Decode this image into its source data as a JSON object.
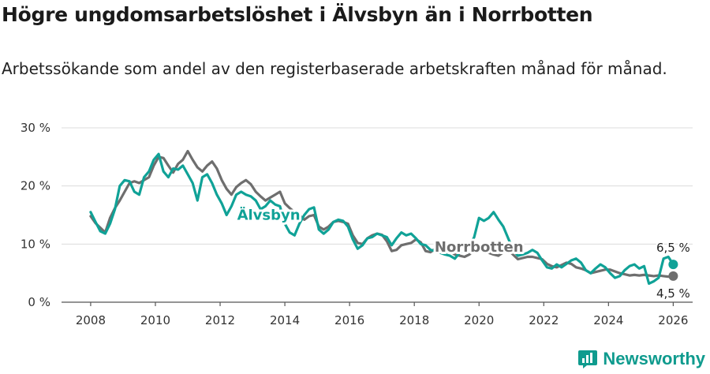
{
  "title": "Högre ungdomsarbetslöshet i Älvsbyn än i Norrbotten",
  "subtitle": "Arbetssökande som andel av den registerbaserade arbetskraften månad för månad.",
  "brand": "Newsworthy",
  "colors": {
    "alvsbyn": "#10a297",
    "norrbotten": "#6e6e6e",
    "grid": "#dcdcdc",
    "brand": "#0f9b8e"
  },
  "chart_data": {
    "type": "line",
    "ylim": [
      0,
      30
    ],
    "xlim": [
      2007.1,
      2026.6
    ],
    "yticks": [
      0,
      10,
      20,
      30
    ],
    "ytick_labels": [
      "0 %",
      "10 %",
      "20 %",
      "30 %"
    ],
    "xticks": [
      "2008",
      "2010",
      "2012",
      "2014",
      "2016",
      "2018",
      "2020",
      "2022",
      "2024",
      "2026"
    ],
    "series": [
      {
        "name": "Norrbotten",
        "label": "Norrbotten",
        "color": "#6e6e6e",
        "end_value": 4.5,
        "end_label": "4,5 %",
        "x": [
          2008.0,
          2008.15,
          2008.3,
          2008.45,
          2008.6,
          2008.75,
          2008.9,
          2009.05,
          2009.2,
          2009.35,
          2009.5,
          2009.65,
          2009.8,
          2009.95,
          2010.1,
          2010.25,
          2010.4,
          2010.55,
          2010.7,
          2010.85,
          2011.0,
          2011.15,
          2011.3,
          2011.45,
          2011.6,
          2011.75,
          2011.9,
          2012.05,
          2012.2,
          2012.35,
          2012.5,
          2012.65,
          2012.8,
          2012.95,
          2013.1,
          2013.25,
          2013.4,
          2013.55,
          2013.7,
          2013.85,
          2014.0,
          2014.15,
          2014.3,
          2014.45,
          2014.6,
          2014.75,
          2014.9,
          2015.05,
          2015.2,
          2015.35,
          2015.5,
          2015.65,
          2015.8,
          2015.95,
          2016.1,
          2016.25,
          2016.4,
          2016.55,
          2016.7,
          2016.85,
          2017.0,
          2017.15,
          2017.3,
          2017.45,
          2017.6,
          2017.75,
          2017.9,
          2018.05,
          2018.2,
          2018.35,
          2018.5,
          2018.65,
          2018.8,
          2018.95,
          2019.1,
          2019.25,
          2019.4,
          2019.55,
          2019.7,
          2019.85,
          2020.0,
          2020.15,
          2020.3,
          2020.45,
          2020.6,
          2020.75,
          2020.9,
          2021.05,
          2021.2,
          2021.35,
          2021.5,
          2021.65,
          2021.8,
          2021.95,
          2022.1,
          2022.25,
          2022.4,
          2022.55,
          2022.7,
          2022.85,
          2023.0,
          2023.15,
          2023.3,
          2023.45,
          2023.6,
          2023.75,
          2023.9,
          2024.05,
          2024.2,
          2024.35,
          2024.5,
          2024.65,
          2024.8,
          2024.95,
          2025.1,
          2025.25,
          2025.4,
          2025.55,
          2025.7,
          2025.85,
          2026.0
        ],
        "values": [
          14.8,
          13.6,
          12.8,
          12.0,
          14.5,
          16.2,
          17.5,
          19.0,
          20.5,
          20.8,
          20.5,
          21.0,
          21.5,
          23.5,
          25.0,
          24.8,
          23.5,
          22.3,
          23.8,
          24.5,
          26.0,
          24.5,
          23.2,
          22.5,
          23.5,
          24.2,
          23.0,
          21.0,
          19.5,
          18.5,
          19.8,
          20.5,
          21.0,
          20.3,
          19.0,
          18.2,
          17.5,
          18.0,
          18.5,
          19.0,
          17.0,
          16.2,
          15.5,
          15.0,
          14.2,
          14.8,
          15.0,
          13.0,
          12.5,
          13.0,
          13.8,
          14.0,
          13.8,
          13.5,
          11.5,
          10.2,
          10.0,
          11.0,
          11.5,
          11.8,
          11.6,
          10.5,
          8.8,
          9.0,
          9.8,
          10.0,
          10.2,
          10.8,
          10.3,
          8.8,
          8.6,
          9.2,
          8.8,
          8.5,
          8.8,
          8.2,
          8.0,
          7.8,
          8.2,
          9.0,
          9.5,
          9.0,
          8.5,
          8.2,
          8.0,
          8.6,
          9.0,
          8.2,
          7.4,
          7.6,
          7.8,
          7.8,
          7.6,
          7.4,
          6.6,
          6.2,
          6.0,
          6.4,
          6.8,
          6.6,
          6.0,
          5.8,
          5.5,
          5.0,
          5.2,
          5.4,
          5.6,
          5.6,
          5.3,
          5.0,
          4.8,
          4.6,
          4.7,
          4.6,
          4.7,
          4.6,
          4.5,
          4.6,
          4.5,
          4.4,
          4.5
        ]
      },
      {
        "name": "Älvsbyn",
        "label": "Älvsbyn",
        "color": "#10a297",
        "end_value": 6.5,
        "end_label": "6,5 %",
        "x": [
          2008.0,
          2008.15,
          2008.3,
          2008.45,
          2008.6,
          2008.75,
          2008.9,
          2009.05,
          2009.2,
          2009.35,
          2009.5,
          2009.65,
          2009.8,
          2009.95,
          2010.1,
          2010.25,
          2010.4,
          2010.55,
          2010.7,
          2010.85,
          2011.0,
          2011.15,
          2011.3,
          2011.45,
          2011.6,
          2011.75,
          2011.9,
          2012.05,
          2012.2,
          2012.35,
          2012.5,
          2012.65,
          2012.8,
          2012.95,
          2013.1,
          2013.25,
          2013.4,
          2013.55,
          2013.7,
          2013.85,
          2014.0,
          2014.15,
          2014.3,
          2014.45,
          2014.6,
          2014.75,
          2014.9,
          2015.05,
          2015.2,
          2015.35,
          2015.5,
          2015.65,
          2015.8,
          2015.95,
          2016.1,
          2016.25,
          2016.4,
          2016.55,
          2016.7,
          2016.85,
          2017.0,
          2017.15,
          2017.3,
          2017.45,
          2017.6,
          2017.75,
          2017.9,
          2018.05,
          2018.2,
          2018.35,
          2018.5,
          2018.65,
          2018.8,
          2018.95,
          2019.1,
          2019.25,
          2019.4,
          2019.55,
          2019.7,
          2019.85,
          2020.0,
          2020.15,
          2020.3,
          2020.45,
          2020.6,
          2020.75,
          2020.9,
          2021.05,
          2021.2,
          2021.35,
          2021.5,
          2021.65,
          2021.8,
          2021.95,
          2022.1,
          2022.25,
          2022.4,
          2022.55,
          2022.7,
          2022.85,
          2023.0,
          2023.15,
          2023.3,
          2023.45,
          2023.6,
          2023.75,
          2023.9,
          2024.05,
          2024.2,
          2024.35,
          2024.5,
          2024.65,
          2024.8,
          2024.95,
          2025.1,
          2025.25,
          2025.4,
          2025.55,
          2025.7,
          2025.85,
          2026.0
        ],
        "values": [
          15.5,
          13.8,
          12.2,
          11.8,
          13.5,
          16.0,
          20.0,
          21.0,
          20.8,
          19.0,
          18.5,
          21.5,
          22.5,
          24.5,
          25.5,
          22.5,
          21.5,
          23.0,
          22.8,
          23.5,
          22.0,
          20.5,
          17.5,
          21.5,
          22.0,
          20.5,
          18.5,
          17.0,
          15.0,
          16.5,
          18.5,
          19.0,
          18.5,
          18.2,
          17.5,
          16.0,
          16.5,
          17.5,
          16.8,
          16.5,
          13.5,
          12.0,
          11.5,
          13.5,
          15.0,
          16.0,
          16.3,
          12.5,
          11.8,
          12.5,
          13.8,
          14.2,
          14.0,
          13.0,
          10.8,
          9.2,
          9.8,
          11.0,
          11.2,
          11.8,
          11.5,
          11.2,
          9.8,
          11.0,
          12.0,
          11.5,
          11.8,
          11.0,
          10.0,
          9.8,
          9.0,
          8.8,
          8.5,
          8.2,
          8.0,
          7.5,
          8.5,
          9.0,
          9.5,
          11.2,
          14.5,
          14.0,
          14.5,
          15.5,
          14.2,
          13.0,
          11.0,
          9.0,
          8.0,
          8.2,
          8.5,
          9.0,
          8.5,
          7.2,
          6.0,
          5.8,
          6.5,
          6.0,
          6.6,
          7.2,
          7.5,
          6.8,
          5.5,
          5.0,
          5.8,
          6.5,
          6.0,
          5.0,
          4.2,
          4.5,
          5.5,
          6.2,
          6.5,
          5.8,
          6.2,
          3.2,
          3.6,
          4.2,
          7.5,
          7.8,
          6.5
        ]
      }
    ],
    "annotations": [
      {
        "series": "Älvsbyn",
        "text": "Älvsbyn",
        "at_x": 2013.5,
        "at_y": 14.2
      },
      {
        "series": "Norrbotten",
        "text": "Norrbotten",
        "at_x": 2020.0,
        "at_y": 8.7
      }
    ]
  }
}
